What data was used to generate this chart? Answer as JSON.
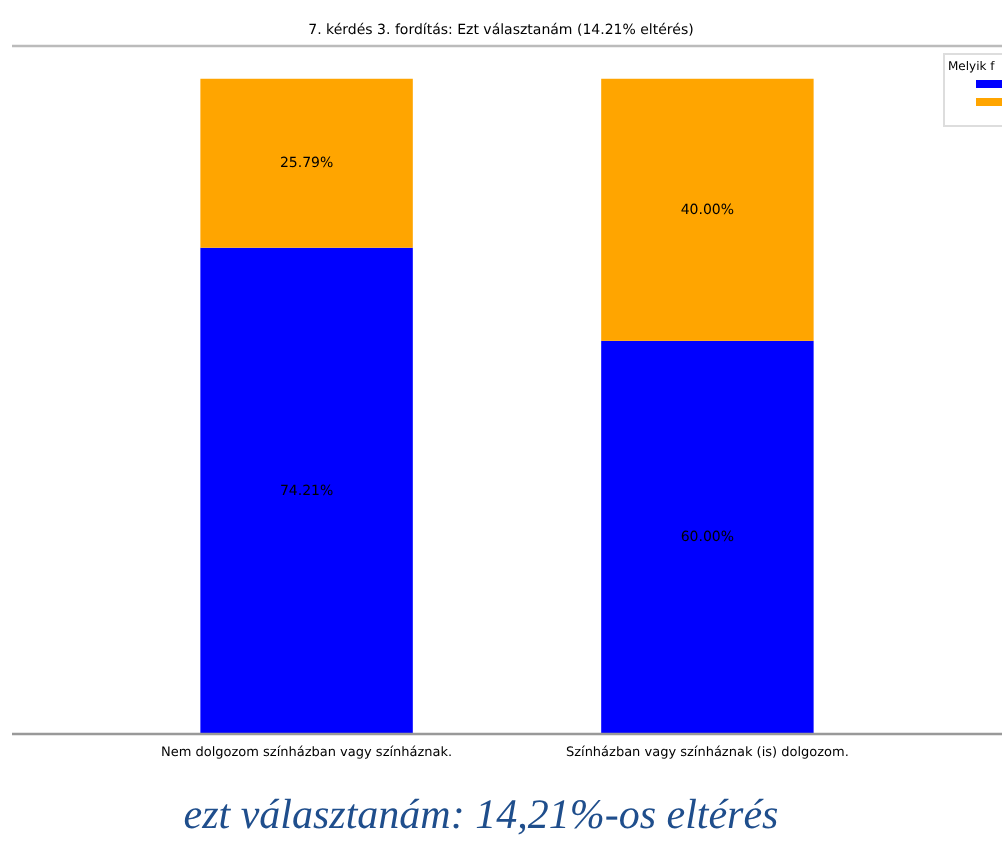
{
  "chart_data": {
    "type": "bar",
    "stacked": true,
    "title": "7. kérdés 3. fordítás: Ezt választanám (14.21% eltérés)",
    "categories": [
      "Nem dolgozom színházban vagy színháznak.",
      "Színházban vagy színháznak (is) dolgozom."
    ],
    "series": [
      {
        "color": "#0000ff",
        "values": [
          74.21,
          60.0
        ],
        "value_labels": [
          "74.21%",
          "60.00%"
        ]
      },
      {
        "color": "#ffa500",
        "values": [
          25.79,
          40.0
        ],
        "value_labels": [
          "25.79%",
          "40.00%"
        ]
      }
    ],
    "ylim": [
      0,
      105
    ],
    "tick_labels": "x",
    "legend_title": "Melyik f",
    "annotations": [
      "ezt választanám: 14,21%-os eltérés"
    ]
  }
}
